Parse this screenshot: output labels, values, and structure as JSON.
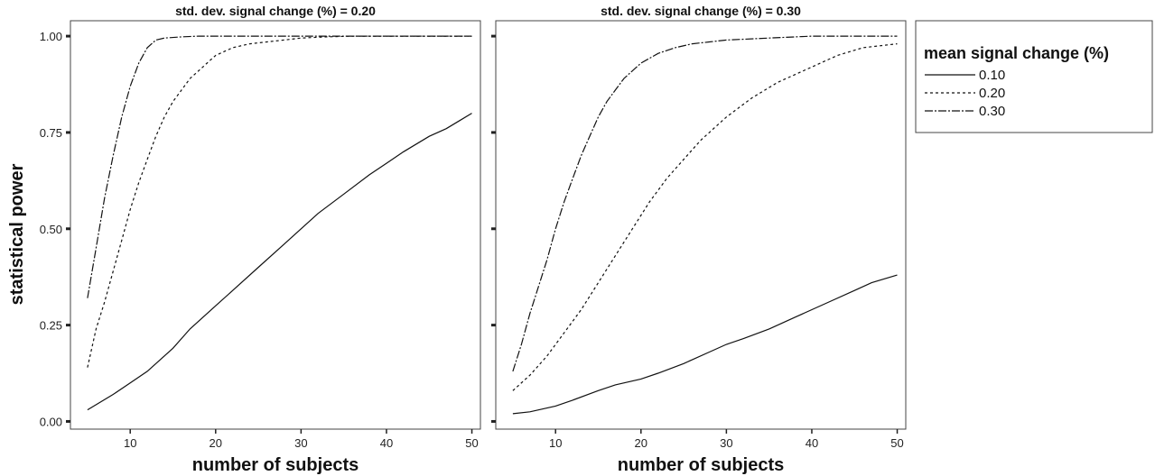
{
  "chart_data": {
    "type": "line",
    "ylabel": "statistical power",
    "xlabel": "number of subjects",
    "xlim": [
      3,
      51
    ],
    "ylim": [
      -0.02,
      1.04
    ],
    "xticks": [
      10,
      20,
      30,
      40,
      50
    ],
    "yticks": [
      0.0,
      0.25,
      0.5,
      0.75,
      1.0
    ],
    "ytick_labels": [
      "0.00",
      "0.25",
      "0.50",
      "0.75",
      "1.00"
    ],
    "grid": false,
    "legend": {
      "title": "mean signal change (%)",
      "placement": "right",
      "entries": [
        {
          "label": "0.10",
          "style": "solid"
        },
        {
          "label": "0.20",
          "style": "dotted"
        },
        {
          "label": "0.30",
          "style": "dashdot"
        }
      ]
    },
    "panels": [
      {
        "title": "std. dev. signal change (%) = 0.20",
        "series": [
          {
            "name": "0.10",
            "style": "solid",
            "x": [
              5,
              8,
              10,
              12,
              15,
              17,
              20,
              22,
              25,
              28,
              30,
              32,
              35,
              38,
              40,
              42,
              45,
              47,
              50
            ],
            "y": [
              0.03,
              0.07,
              0.1,
              0.13,
              0.19,
              0.24,
              0.3,
              0.34,
              0.4,
              0.46,
              0.5,
              0.54,
              0.59,
              0.64,
              0.67,
              0.7,
              0.74,
              0.76,
              0.8
            ]
          },
          {
            "name": "0.20",
            "style": "dotted",
            "x": [
              5,
              6,
              7,
              8,
              9,
              10,
              11,
              12,
              13,
              14,
              15,
              16,
              17,
              18,
              19,
              20,
              22,
              24,
              26,
              28,
              30,
              33,
              36,
              40,
              45,
              50
            ],
            "y": [
              0.14,
              0.24,
              0.31,
              0.39,
              0.47,
              0.55,
              0.62,
              0.68,
              0.74,
              0.79,
              0.83,
              0.86,
              0.89,
              0.91,
              0.93,
              0.95,
              0.97,
              0.98,
              0.985,
              0.99,
              0.995,
              0.998,
              1.0,
              1.0,
              1.0,
              1.0
            ]
          },
          {
            "name": "0.30",
            "style": "dashdot",
            "x": [
              5,
              6,
              7,
              8,
              9,
              10,
              11,
              12,
              13,
              14,
              16,
              18,
              20,
              25,
              30,
              40,
              50
            ],
            "y": [
              0.32,
              0.45,
              0.58,
              0.69,
              0.79,
              0.87,
              0.93,
              0.97,
              0.99,
              0.995,
              0.998,
              1.0,
              1.0,
              1.0,
              1.0,
              1.0,
              1.0
            ]
          }
        ]
      },
      {
        "title": "std. dev. signal change (%) = 0.30",
        "series": [
          {
            "name": "0.10",
            "style": "solid",
            "x": [
              5,
              7,
              10,
              12,
              15,
              17,
              20,
              22,
              25,
              28,
              30,
              32,
              35,
              38,
              40,
              42,
              45,
              47,
              50
            ],
            "y": [
              0.02,
              0.025,
              0.04,
              0.055,
              0.08,
              0.095,
              0.11,
              0.125,
              0.15,
              0.18,
              0.2,
              0.215,
              0.24,
              0.27,
              0.29,
              0.31,
              0.34,
              0.36,
              0.38
            ]
          },
          {
            "name": "0.20",
            "style": "dotted",
            "x": [
              5,
              7,
              9,
              11,
              13,
              15,
              17,
              19,
              21,
              23,
              25,
              27,
              30,
              33,
              36,
              40,
              43,
              46,
              50
            ],
            "y": [
              0.08,
              0.12,
              0.17,
              0.23,
              0.29,
              0.36,
              0.43,
              0.5,
              0.57,
              0.63,
              0.68,
              0.73,
              0.79,
              0.84,
              0.88,
              0.92,
              0.95,
              0.97,
              0.98
            ]
          },
          {
            "name": "0.30",
            "style": "dashdot",
            "x": [
              5,
              6,
              7,
              8,
              9,
              10,
              11,
              12,
              13,
              14,
              15,
              16,
              17,
              18,
              20,
              22,
              24,
              26,
              28,
              30,
              35,
              40,
              50
            ],
            "y": [
              0.13,
              0.2,
              0.28,
              0.35,
              0.42,
              0.5,
              0.57,
              0.63,
              0.69,
              0.74,
              0.79,
              0.83,
              0.86,
              0.89,
              0.93,
              0.955,
              0.97,
              0.98,
              0.985,
              0.99,
              0.995,
              1.0,
              1.0
            ]
          }
        ]
      }
    ]
  }
}
